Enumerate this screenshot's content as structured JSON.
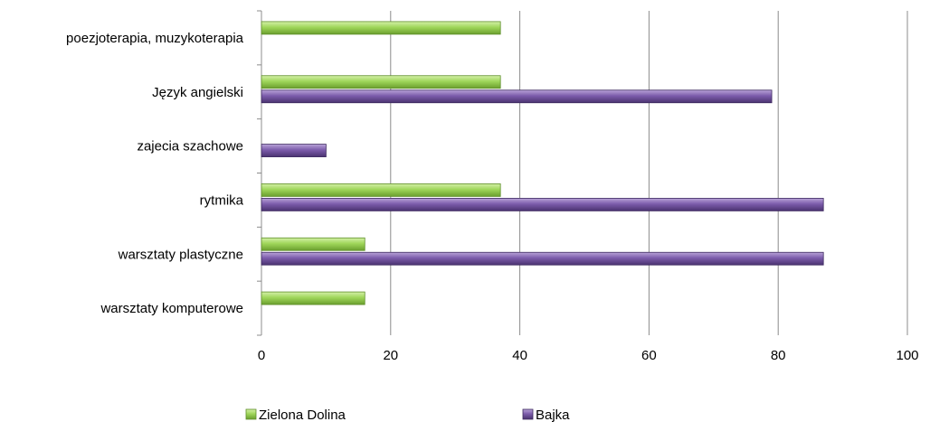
{
  "chart_data": {
    "type": "bar",
    "orientation": "horizontal",
    "categories": [
      "warsztaty komputerowe",
      "warsztaty plastyczne",
      "rytmika",
      "zajecia szachowe",
      "Język angielski",
      "poezjoterapia, muzykoterapia"
    ],
    "series": [
      {
        "name": "Zielona Dolina",
        "color": "#92d050",
        "values": [
          16,
          16,
          37,
          0,
          37,
          37
        ]
      },
      {
        "name": "Bajka",
        "color": "#7a5aa5",
        "values": [
          0,
          87,
          87,
          10,
          79,
          0
        ]
      }
    ],
    "xlim": [
      0,
      100
    ],
    "xticks": [
      0,
      20,
      40,
      60,
      80,
      100
    ],
    "tick_labels": [
      "0",
      "20",
      "40",
      "60",
      "80",
      "100"
    ],
    "grid": true,
    "legend_position": "bottom",
    "title": "",
    "xlabel": "",
    "ylabel": ""
  }
}
